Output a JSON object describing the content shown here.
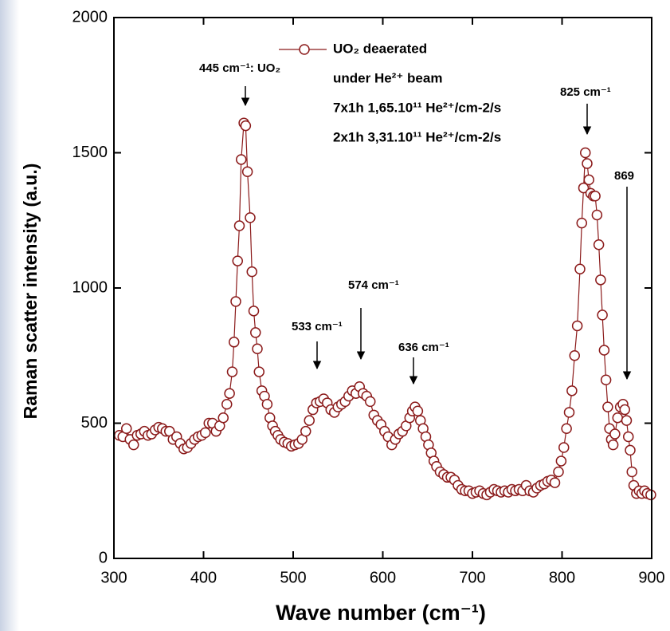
{
  "chart_data": {
    "type": "line",
    "x_label": "Wave number (cm⁻¹)",
    "y_label": "Raman scatter intensity (a.u.)",
    "xlim": [
      300,
      900
    ],
    "xticks": [
      300,
      400,
      500,
      600,
      700,
      800,
      900
    ],
    "ylim": [
      0,
      2000
    ],
    "yticks": [
      0,
      500,
      1000,
      1500,
      2000
    ],
    "marker": "open-circle",
    "series": [
      {
        "name": "UO₂ deaerated",
        "color": "#8b1a1a",
        "x": [
          306,
          310,
          314,
          318,
          322,
          326,
          330,
          334,
          338,
          342,
          346,
          350,
          354,
          358,
          362,
          366,
          370,
          374,
          378,
          382,
          386,
          390,
          394,
          398,
          402,
          406,
          410,
          414,
          418,
          422,
          426,
          429,
          432,
          434,
          436,
          438,
          440,
          442,
          445,
          447,
          449,
          452,
          454,
          456,
          458,
          460,
          462,
          465,
          468,
          471,
          474,
          477,
          480,
          483,
          486,
          490,
          494,
          498,
          502,
          506,
          510,
          514,
          518,
          522,
          526,
          530,
          534,
          538,
          542,
          546,
          550,
          554,
          558,
          562,
          566,
          570,
          574,
          578,
          582,
          586,
          590,
          594,
          598,
          602,
          606,
          610,
          614,
          618,
          622,
          626,
          630,
          633,
          636,
          639,
          642,
          645,
          648,
          651,
          654,
          657,
          660,
          664,
          668,
          672,
          676,
          680,
          684,
          688,
          692,
          696,
          700,
          704,
          708,
          712,
          716,
          720,
          724,
          728,
          732,
          736,
          740,
          744,
          748,
          752,
          756,
          760,
          764,
          768,
          772,
          776,
          780,
          784,
          788,
          792,
          796,
          799,
          802,
          805,
          808,
          811,
          814,
          817,
          820,
          822,
          824,
          826,
          828,
          830,
          832,
          835,
          837,
          839,
          841,
          843,
          845,
          847,
          849,
          851,
          853,
          855,
          857,
          859,
          862,
          865,
          868,
          870,
          872,
          874,
          876,
          878,
          880,
          883,
          886,
          889,
          892,
          895,
          899
        ],
        "values": [
          455,
          450,
          480,
          440,
          420,
          455,
          460,
          470,
          455,
          460,
          475,
          485,
          480,
          470,
          470,
          440,
          450,
          425,
          405,
          410,
          425,
          440,
          450,
          455,
          465,
          500,
          500,
          470,
          490,
          520,
          570,
          610,
          690,
          800,
          950,
          1100,
          1230,
          1475,
          1610,
          1600,
          1430,
          1260,
          1060,
          915,
          835,
          775,
          690,
          620,
          600,
          570,
          520,
          490,
          470,
          455,
          440,
          430,
          425,
          415,
          420,
          425,
          440,
          470,
          510,
          550,
          575,
          580,
          590,
          575,
          550,
          540,
          560,
          570,
          580,
          600,
          620,
          610,
          635,
          610,
          600,
          580,
          530,
          510,
          495,
          470,
          450,
          420,
          440,
          460,
          470,
          490,
          520,
          545,
          560,
          545,
          510,
          480,
          450,
          420,
          390,
          360,
          340,
          320,
          310,
          300,
          300,
          290,
          270,
          255,
          250,
          250,
          240,
          245,
          250,
          240,
          235,
          245,
          255,
          250,
          245,
          250,
          245,
          255,
          250,
          255,
          250,
          270,
          250,
          245,
          260,
          270,
          275,
          285,
          290,
          280,
          320,
          360,
          410,
          480,
          540,
          620,
          750,
          860,
          1070,
          1240,
          1370,
          1500,
          1460,
          1400,
          1350,
          1340,
          1340,
          1270,
          1160,
          1030,
          900,
          770,
          660,
          560,
          480,
          440,
          420,
          460,
          520,
          560,
          570,
          550,
          510,
          450,
          400,
          320,
          270,
          240,
          250,
          240,
          250,
          240,
          235
        ]
      }
    ],
    "legend_text": [
      "under He²⁺ beam",
      "7x1h 1,65.10¹¹ He²⁺/cm-2/s",
      "2x1h 3,31.10¹¹ He²⁺/cm-2/s"
    ],
    "annotations": [
      "445 cm⁻¹: UO₂",
      "533 cm⁻¹",
      "574 cm⁻¹",
      "636 cm⁻¹",
      "825 cm⁻¹",
      "869"
    ]
  }
}
